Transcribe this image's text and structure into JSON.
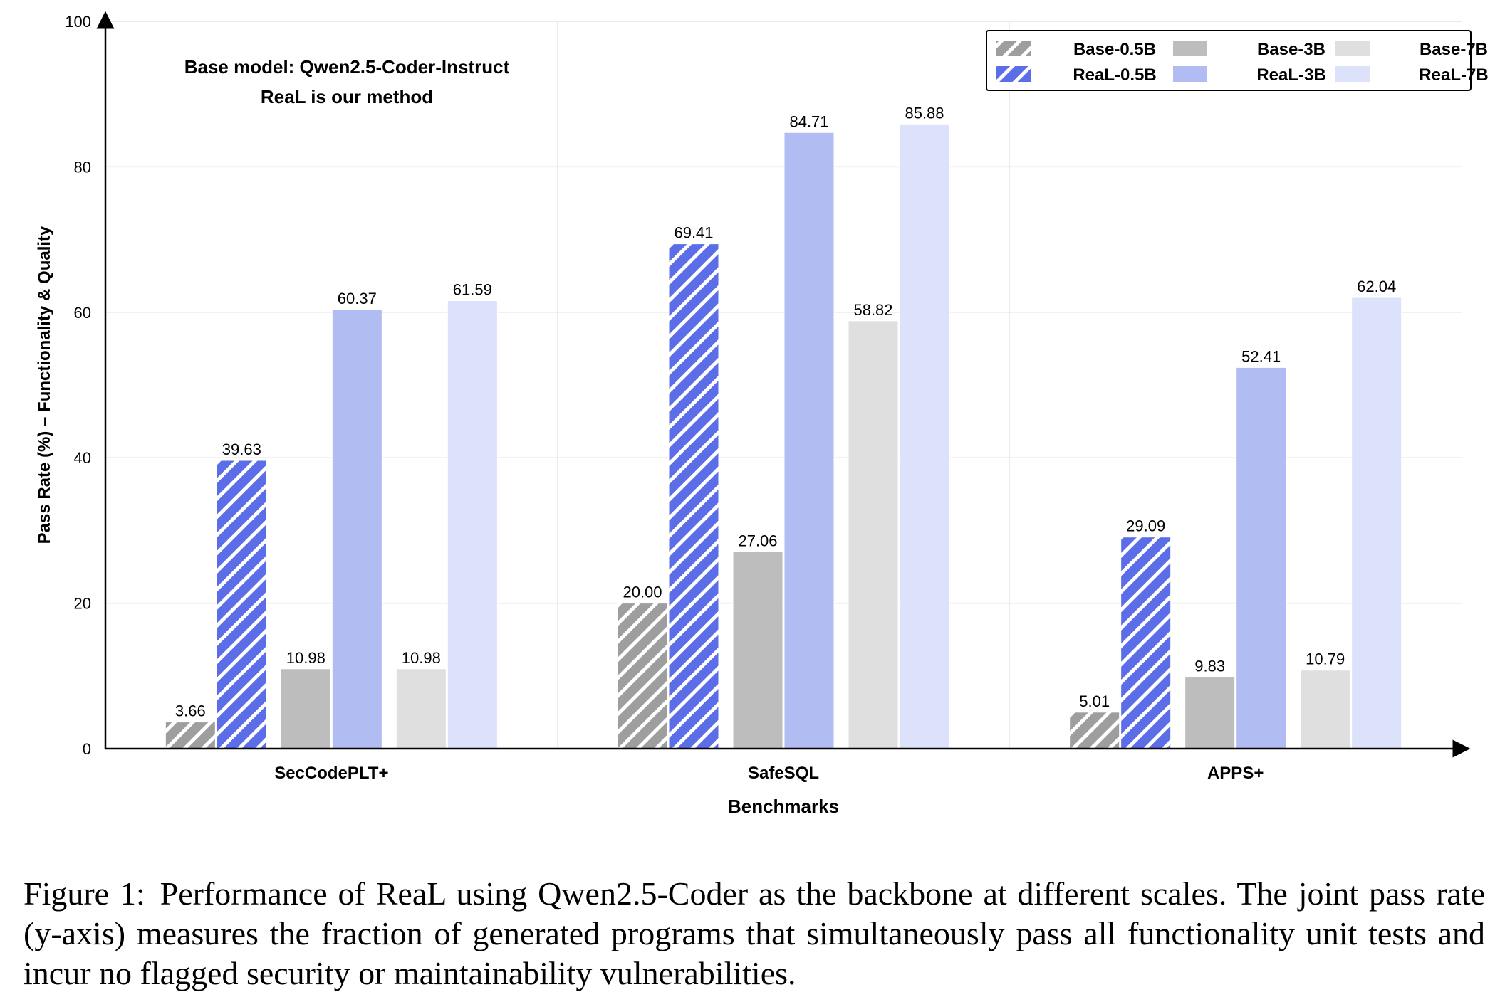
{
  "chart_data": {
    "type": "bar",
    "categories": [
      "SecCodePLT+",
      "SafeSQL",
      "APPS+"
    ],
    "series": [
      {
        "name": "Base-0.5B",
        "values": [
          3.66,
          20.0,
          5.01
        ],
        "color": "#9e9e9e",
        "hatched": true
      },
      {
        "name": "ReaL-0.5B",
        "values": [
          39.63,
          69.41,
          29.09
        ],
        "color": "#5b6ee8",
        "hatched": true
      },
      {
        "name": "Base-3B",
        "values": [
          10.98,
          27.06,
          9.83
        ],
        "color": "#bdbdbd",
        "hatched": false
      },
      {
        "name": "ReaL-3B",
        "values": [
          60.37,
          84.71,
          52.41
        ],
        "color": "#b1bcf3",
        "hatched": false
      },
      {
        "name": "Base-7B",
        "values": [
          10.98,
          58.82,
          10.79
        ],
        "color": "#dfdfdf",
        "hatched": false
      },
      {
        "name": "ReaL-7B",
        "values": [
          61.59,
          85.88,
          62.04
        ],
        "color": "#dce2fa",
        "hatched": false
      }
    ],
    "value_labels": [
      [
        "3.66",
        "20.00",
        "5.01"
      ],
      [
        "39.63",
        "69.41",
        "29.09"
      ],
      [
        "10.98",
        "27.06",
        "9.83"
      ],
      [
        "60.37",
        "84.71",
        "52.41"
      ],
      [
        "10.98",
        "58.82",
        "10.79"
      ],
      [
        "61.59",
        "85.88",
        "62.04"
      ]
    ],
    "xlabel": "Benchmarks",
    "ylabel": "Pass Rate (%) – Functionality & Quality",
    "ylim": [
      0,
      100
    ],
    "yticks": [
      0,
      20,
      40,
      60,
      80,
      100
    ],
    "annotations": [
      "Base model: Qwen2.5-Coder-Instruct",
      "ReaL is our method"
    ],
    "grid": true,
    "legend": "top-right",
    "legend_order": [
      "Base-0.5B",
      "Base-3B",
      "Base-7B",
      "ReaL-0.5B",
      "ReaL-3B",
      "ReaL-7B"
    ]
  },
  "caption": {
    "label": "Figure 1:",
    "text": "Performance of ReaL using Qwen2.5-Coder as the backbone at different scales. The joint pass rate (y-axis) measures the fraction of generated programs that simultaneously pass all functionality unit tests and incur no flagged security or maintainability vulnerabilities."
  }
}
